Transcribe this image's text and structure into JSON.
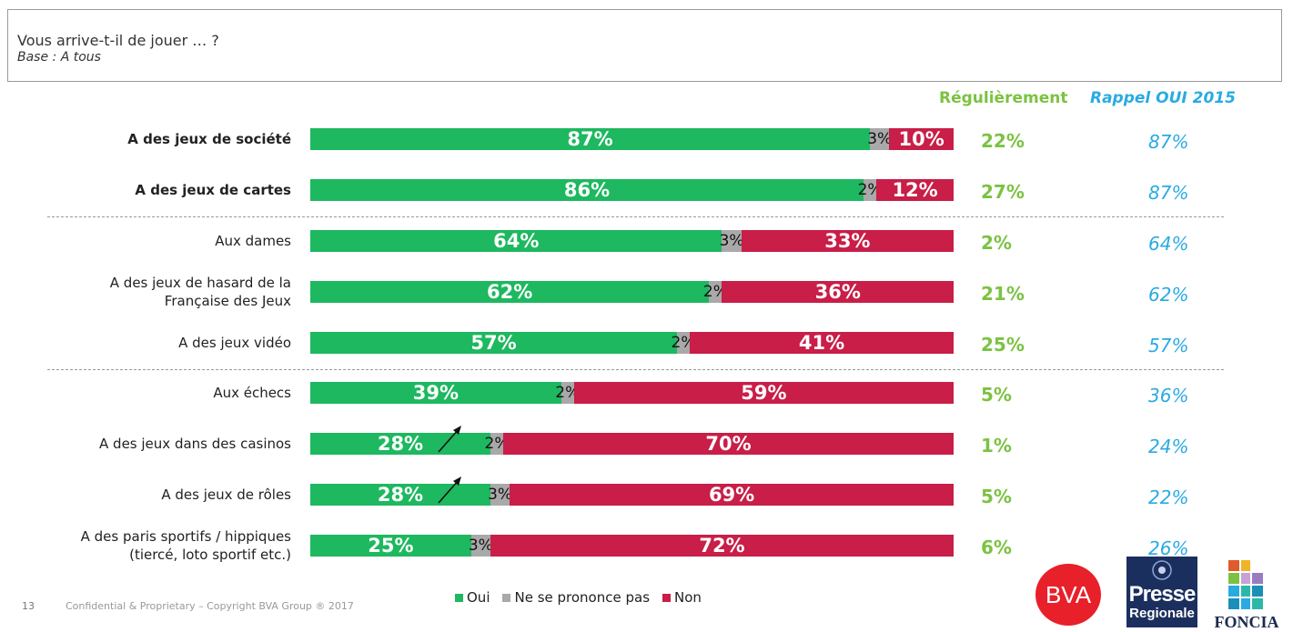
{
  "header": {
    "title": "Vous arrive-t-il de jouer … ?",
    "base": "Base : A tous"
  },
  "columns": {
    "regulierement": "Régulièrement",
    "rappel": "Rappel OUI  2015"
  },
  "colors": {
    "oui": "#1db85f",
    "nsp": "#a9a9a9",
    "non": "#c81e47",
    "regulierement": "#7cc242",
    "rappel": "#29abe2"
  },
  "chart_data": {
    "type": "bar",
    "orientation": "horizontal",
    "stacked": true,
    "categories": [
      "A des jeux de société",
      "A des jeux de cartes",
      "Aux dames",
      "A des jeux de hasard de la Française des Jeux",
      "A des jeux vidéo",
      "Aux échecs",
      "A des jeux dans des casinos",
      "A des jeux de rôles",
      "A des paris sportifs / hippiques (tiercé, loto sportif etc.)"
    ],
    "series": [
      {
        "name": "Oui",
        "values": [
          87,
          86,
          64,
          62,
          57,
          39,
          28,
          28,
          25
        ]
      },
      {
        "name": "Ne se prononce pas",
        "values": [
          3,
          2,
          3,
          2,
          2,
          2,
          2,
          3,
          3
        ]
      },
      {
        "name": "Non",
        "values": [
          10,
          12,
          33,
          36,
          41,
          59,
          70,
          69,
          72
        ]
      }
    ],
    "regulierement": [
      "22%",
      "27%",
      "2%",
      "21%",
      "25%",
      "5%",
      "1%",
      "5%",
      "6%"
    ],
    "rappel_oui_2015": [
      "87%",
      "87%",
      "64%",
      "62%",
      "57%",
      "36%",
      "24%",
      "22%",
      "26%"
    ],
    "legend": [
      "Oui",
      "Ne se prononce pas",
      "Non"
    ],
    "legend_position": "bottom",
    "xlim": [
      0,
      100
    ]
  },
  "rows": [
    {
      "label_lines": [
        "A des jeux de société"
      ],
      "bold": true
    },
    {
      "label_lines": [
        "A des jeux de cartes"
      ],
      "bold": true
    },
    {
      "label_lines": [
        "Aux dames"
      ],
      "bold": false
    },
    {
      "label_lines": [
        "A des jeux de hasard de la",
        "Française des Jeux"
      ],
      "bold": false
    },
    {
      "label_lines": [
        "A des jeux vidéo"
      ],
      "bold": false
    },
    {
      "label_lines": [
        "Aux échecs"
      ],
      "bold": false
    },
    {
      "label_lines": [
        "A des jeux dans des casinos"
      ],
      "bold": false
    },
    {
      "label_lines": [
        "A des jeux de rôles"
      ],
      "bold": false
    },
    {
      "label_lines": [
        "A des paris sportifs / hippiques",
        "(tiercé, loto sportif etc.)"
      ],
      "bold": false
    }
  ],
  "trend_up_rows": [
    6,
    7
  ],
  "legend": {
    "oui": "Oui",
    "nsp": "Ne se prononce pas",
    "non": "Non"
  },
  "footer": {
    "page_number": "13",
    "text": "Confidential & Proprietary – Copyright BVA Group ®  2017"
  },
  "logos": {
    "bva": "BVA",
    "presse_1": "Presse",
    "presse_2": "Regionale",
    "foncia": "FONCIA"
  }
}
